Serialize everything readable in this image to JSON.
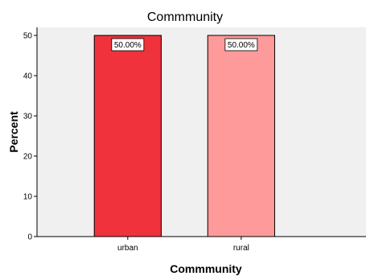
{
  "chart_data": {
    "type": "bar",
    "title": "Commmunity",
    "xlabel": "Commmunity",
    "ylabel": "Percent",
    "categories": [
      "urban",
      "rural"
    ],
    "values": [
      50,
      50
    ],
    "data_labels": [
      "50.00%",
      "50.00%"
    ],
    "bar_colors": [
      "#f0323c",
      "#ff9a9a"
    ],
    "ylim": [
      0,
      52
    ],
    "yticks": [
      0,
      10,
      20,
      30,
      40,
      50
    ],
    "grid": false,
    "legend": "none",
    "colors": {
      "plot_background": "#f0f0f0",
      "bar_outline": "#000000"
    }
  }
}
